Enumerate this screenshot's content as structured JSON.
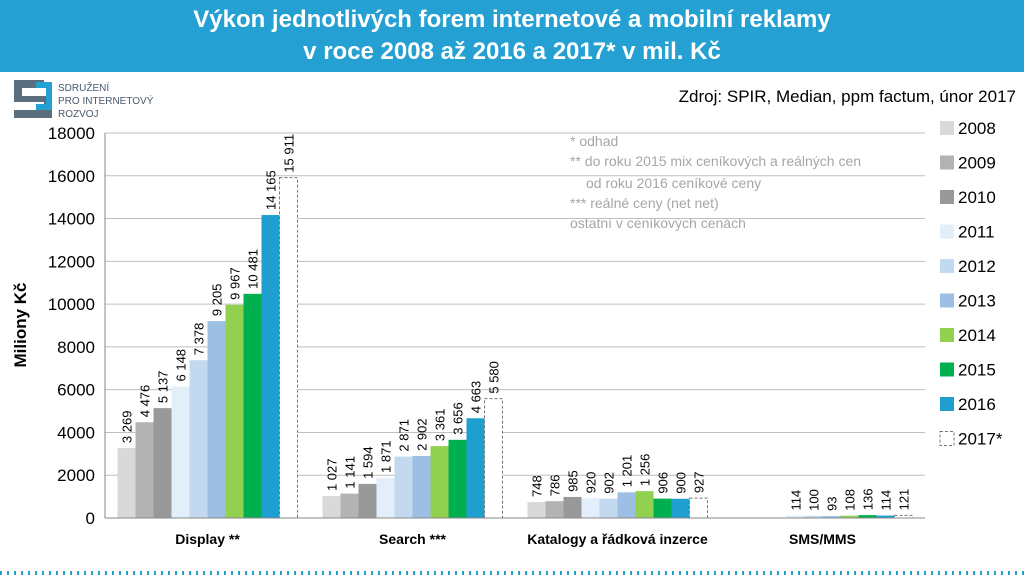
{
  "logo": {
    "lines": [
      "SDRUŽENÍ",
      "PRO INTERNETOVÝ",
      "ROZVOJ"
    ]
  },
  "chart_data": {
    "type": "bar",
    "title": [
      "Výkon jednotlivých forem internetové a mobilní reklamy",
      "v roce 2008 až 2016 a 2017* v mil. Kč"
    ],
    "source": "Zdroj: SPIR, Median, ppm factum, únor 2017",
    "notes": [
      "* odhad",
      "** do roku 2015 mix ceníkových a reálných cen",
      "od roku 2016 ceníkové ceny",
      "*** reálné ceny (net net)",
      "ostatní v ceníkových cenách"
    ],
    "y_label": "Miliony Kč",
    "categories": [
      "Display **",
      "Search ***",
      "Katalogy a řádková inzerce",
      "SMS/MMS"
    ],
    "ylim": [
      0,
      18000
    ],
    "yticks": [
      0,
      2000,
      4000,
      6000,
      8000,
      10000,
      12000,
      14000,
      16000,
      18000
    ],
    "grid": true,
    "series": [
      {
        "name": "2008",
        "color": "#d9d9d9",
        "values": [
          3269,
          1027,
          748,
          null
        ],
        "value_labels": [
          "3 269",
          "1 027",
          "748",
          null
        ]
      },
      {
        "name": "2009",
        "color": "#b3b3b3",
        "values": [
          4476,
          1141,
          786,
          null
        ],
        "value_labels": [
          "4 476",
          "1 141",
          "786",
          null
        ]
      },
      {
        "name": "2010",
        "color": "#999999",
        "values": [
          5137,
          1594,
          985,
          null
        ],
        "value_labels": [
          "5 137",
          "1 594",
          "985",
          null
        ]
      },
      {
        "name": "2011",
        "color": "#e2eef9",
        "values": [
          6148,
          1871,
          920,
          114
        ],
        "value_labels": [
          "6 148",
          "1 871",
          "920",
          "114"
        ]
      },
      {
        "name": "2012",
        "color": "#c3d9ef",
        "values": [
          7378,
          2871,
          902,
          100
        ],
        "value_labels": [
          "7 378",
          "2 871",
          "902",
          "100"
        ]
      },
      {
        "name": "2013",
        "color": "#9ebfe4",
        "values": [
          9205,
          2902,
          1201,
          93
        ],
        "value_labels": [
          "9 205",
          "2 902",
          "1 201",
          "93"
        ]
      },
      {
        "name": "2014",
        "color": "#92d050",
        "values": [
          9967,
          3361,
          1256,
          108
        ],
        "value_labels": [
          "9 967",
          "3 361",
          "1 256",
          "108"
        ]
      },
      {
        "name": "2015",
        "color": "#00b050",
        "values": [
          10481,
          3656,
          906,
          136
        ],
        "value_labels": [
          "10 481",
          "3 656",
          "906",
          "136"
        ]
      },
      {
        "name": "2016",
        "color": "#1e9fd0",
        "values": [
          14165,
          4663,
          900,
          114
        ],
        "value_labels": [
          "14 165",
          "4 663",
          "900",
          "114"
        ]
      },
      {
        "name": "2017*",
        "color": "#ffffff",
        "border": "dashed",
        "values": [
          15911,
          5580,
          927,
          121
        ],
        "value_labels": [
          "15 911",
          "5 580",
          "927",
          "121"
        ]
      }
    ]
  }
}
